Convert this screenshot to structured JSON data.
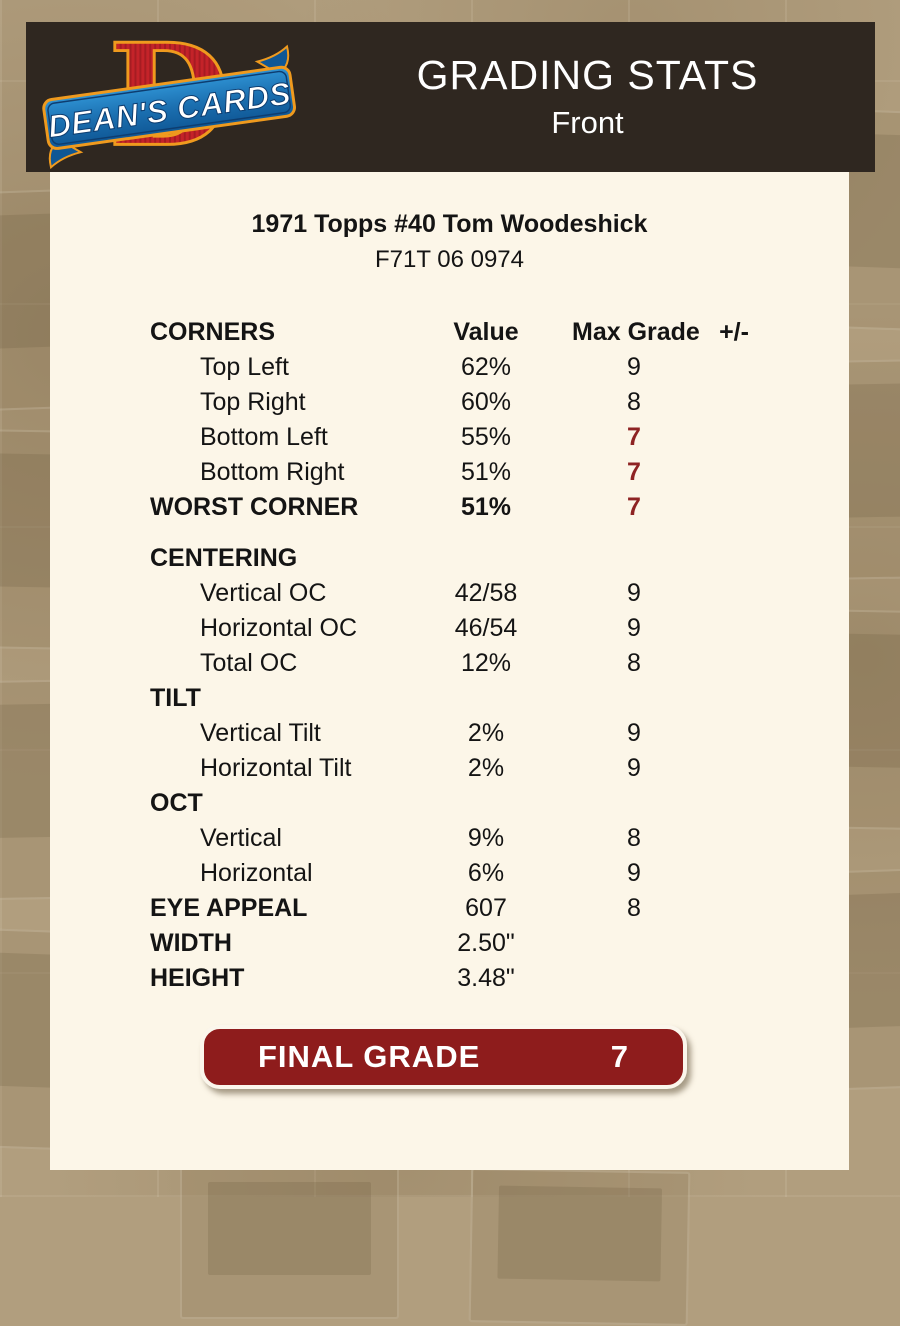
{
  "logo": {
    "brand": "DEAN'S CARDS",
    "letter": "D"
  },
  "header": {
    "title": "GRADING STATS",
    "subtitle": "Front"
  },
  "card": {
    "title": "1971 Topps #40 Tom Woodeshick",
    "serial": "F71T 06 0974"
  },
  "table": {
    "header": {
      "label": "CORNERS",
      "value": "Value",
      "grade": "Max Grade",
      "plus_minus": "+/-"
    },
    "rows": [
      {
        "label": "Top Left",
        "value": "62%",
        "grade": "9",
        "indent": true
      },
      {
        "label": "Top Right",
        "value": "60%",
        "grade": "8",
        "indent": true
      },
      {
        "label": "Bottom Left",
        "value": "55%",
        "grade": "7",
        "indent": true,
        "red_grade": true
      },
      {
        "label": "Bottom Right",
        "value": "51%",
        "grade": "7",
        "indent": true,
        "red_grade": true
      },
      {
        "label": "WORST CORNER",
        "value": "51%",
        "grade": "7",
        "label_bold": true,
        "value_bold": true,
        "red_grade": true
      },
      {
        "label": "CENTERING",
        "section": true,
        "gap": true
      },
      {
        "label": "Vertical OC",
        "value": "42/58",
        "grade": "9",
        "indent": true
      },
      {
        "label": "Horizontal OC",
        "value": "46/54",
        "grade": "9",
        "indent": true
      },
      {
        "label": "Total OC",
        "value": "12%",
        "grade": "8",
        "indent": true
      },
      {
        "label": "TILT",
        "section": true
      },
      {
        "label": "Vertical Tilt",
        "value": "2%",
        "grade": "9",
        "indent": true
      },
      {
        "label": "Horizontal Tilt",
        "value": "2%",
        "grade": "9",
        "indent": true
      },
      {
        "label": "OCT",
        "section": true
      },
      {
        "label": "Vertical",
        "value": "9%",
        "grade": "8",
        "indent": true
      },
      {
        "label": "Horizontal",
        "value": "6%",
        "grade": "9",
        "indent": true
      },
      {
        "label": "EYE APPEAL",
        "value": "607",
        "grade": "8",
        "label_bold": true
      },
      {
        "label": "WIDTH",
        "value": "2.50\"",
        "label_bold": true
      },
      {
        "label": "HEIGHT",
        "value": "3.48\"",
        "label_bold": true
      }
    ]
  },
  "final_grade": {
    "label": "FINAL GRADE",
    "value": "7"
  },
  "colors": {
    "page_background": "#b19e7e",
    "header_background": "#2f2720",
    "panel_background": "#fcf6e8",
    "grade_red": "#8e2323",
    "button_red": "#8e1c1c",
    "logo_red": "#c42329",
    "logo_orange": "#ef9a1e",
    "logo_blue": "#1b6fb0",
    "logo_navy": "#0d3d70"
  }
}
